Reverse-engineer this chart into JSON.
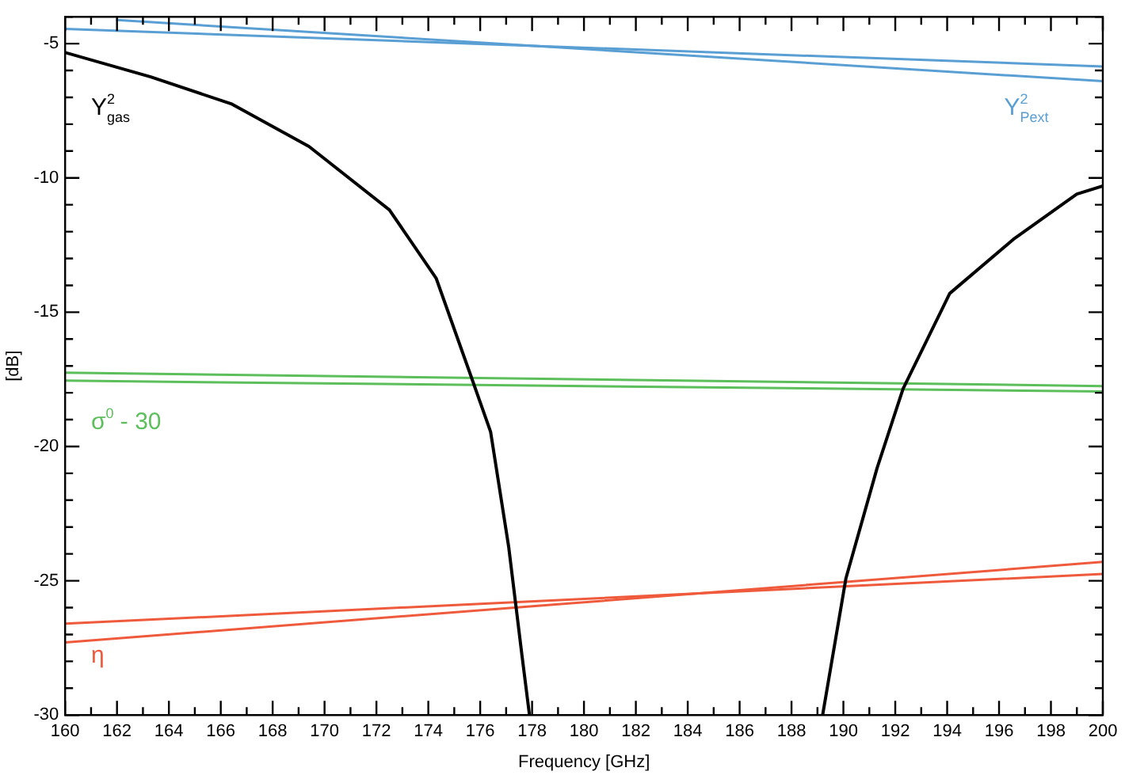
{
  "chart_data": {
    "type": "line",
    "xlabel": "Frequency [GHz]",
    "ylabel": "[dB]",
    "xlim": [
      160,
      200
    ],
    "ylim": [
      -30,
      -4
    ],
    "xticks": [
      160,
      {
        "value": 161,
        "label": null
      },
      162,
      {
        "value": 163,
        "label": null
      },
      164,
      {
        "value": 165,
        "label": null
      },
      166,
      {
        "value": 167,
        "label": null
      },
      168,
      {
        "value": 169,
        "label": null
      },
      170,
      {
        "value": 171,
        "label": null
      },
      172,
      {
        "value": 173,
        "label": null
      },
      174,
      {
        "value": 175,
        "label": null
      },
      176,
      {
        "value": 177,
        "label": null
      },
      178,
      {
        "value": 179,
        "label": null
      },
      180,
      {
        "value": 181,
        "label": null
      },
      182,
      {
        "value": 183,
        "label": null
      },
      184,
      {
        "value": 185,
        "label": null
      },
      186,
      {
        "value": 187,
        "label": null
      },
      188,
      {
        "value": 189,
        "label": null
      },
      190,
      {
        "value": 191,
        "label": null
      },
      192,
      {
        "value": 193,
        "label": null
      },
      194,
      {
        "value": 195,
        "label": null
      },
      196,
      {
        "value": 197,
        "label": null
      },
      198,
      {
        "value": 199,
        "label": null
      },
      200
    ],
    "yticks": [
      -30,
      {
        "value": -29,
        "label": null
      },
      {
        "value": -28,
        "label": null
      },
      {
        "value": -27,
        "label": null
      },
      {
        "value": -26,
        "label": null
      },
      -25,
      {
        "value": -24,
        "label": null
      },
      {
        "value": -23,
        "label": null
      },
      {
        "value": -22,
        "label": null
      },
      {
        "value": -21,
        "label": null
      },
      -20,
      {
        "value": -19,
        "label": null
      },
      {
        "value": -18,
        "label": null
      },
      {
        "value": -17,
        "label": null
      },
      {
        "value": -16,
        "label": null
      },
      -15,
      {
        "value": -14,
        "label": null
      },
      {
        "value": -13,
        "label": null
      },
      {
        "value": -12,
        "label": null
      },
      {
        "value": -11,
        "label": null
      },
      -10,
      {
        "value": -9,
        "label": null
      },
      {
        "value": -8,
        "label": null
      },
      {
        "value": -7,
        "label": null
      },
      {
        "value": -6,
        "label": null
      },
      -5,
      {
        "value": -4,
        "label": null
      }
    ],
    "legend": false,
    "marker": "none",
    "line_style": "solid",
    "series": [
      {
        "color": "#000000",
        "x": [
          160,
          163.3,
          166.4,
          169.4,
          172.5,
          174.3,
          175.6,
          176.4,
          177.1,
          177.6,
          177.9
        ],
        "values": [
          -5.33,
          -6.24,
          -7.24,
          -8.83,
          -11.19,
          -13.73,
          -17.26,
          -19.45,
          -23.75,
          -27.7,
          -30
        ]
      },
      {
        "color": "#000000",
        "x": [
          189.2,
          190.1,
          191.3,
          192.3,
          194.1,
          196.6,
          199,
          200
        ],
        "values": [
          -30,
          -24.9,
          -20.8,
          -17.85,
          -14.3,
          -12.25,
          -10.6,
          -10.3
        ]
      },
      {
        "color": "#5a9fd4",
        "x": [
          160,
          200
        ],
        "values": [
          -4.45,
          -5.85
        ]
      },
      {
        "color": "#5a9fd4",
        "x": [
          162,
          200
        ],
        "values": [
          -4.12,
          -6.4
        ]
      },
      {
        "color": "#5cbf5c",
        "x": [
          160,
          200
        ],
        "values": [
          -17.25,
          -17.75
        ]
      },
      {
        "color": "#5cbf5c",
        "x": [
          160,
          200
        ],
        "values": [
          -17.55,
          -17.95
        ]
      },
      {
        "color": "#f05a3c",
        "x": [
          160,
          200
        ],
        "values": [
          -26.6,
          -24.75
        ]
      },
      {
        "color": "#f05a3c",
        "x": [
          160,
          200
        ],
        "values": [
          -27.3,
          -24.3
        ]
      }
    ],
    "annotations": [
      "Υ$^{2}$$_{gas}$",
      "Υ$^{2}$$_{Pext}$",
      "σ$^{0}$ - 30",
      "η"
    ]
  }
}
